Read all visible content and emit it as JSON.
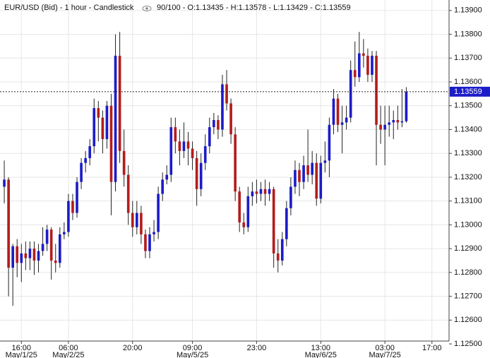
{
  "chart_data": {
    "type": "candlestick",
    "title": "EUR/USD (Bid) - 1 hour - Candlestick",
    "header_info": "90/100 - O:1.13435 - H:1.13578 - L:1.13429 - C:1.13559",
    "up_color": "#1c1cc8",
    "down_color": "#b41c1c",
    "grid": true,
    "last_price": 1.13559,
    "xlim": [
      -1,
      104
    ],
    "ylim": [
      1.12512,
      1.13944
    ],
    "yticks": [
      {
        "value": 1.125,
        "label": "1.12500"
      },
      {
        "value": 1.126,
        "label": "1.12600"
      },
      {
        "value": 1.127,
        "label": "1.12700"
      },
      {
        "value": 1.128,
        "label": "1.12800"
      },
      {
        "value": 1.129,
        "label": "1.12900"
      },
      {
        "value": 1.13,
        "label": "1.13000"
      },
      {
        "value": 1.131,
        "label": "1.13100"
      },
      {
        "value": 1.132,
        "label": "1.13200"
      },
      {
        "value": 1.133,
        "label": "1.13300"
      },
      {
        "value": 1.134,
        "label": "1.13400"
      },
      {
        "value": 1.135,
        "label": "1.13500"
      },
      {
        "value": 1.136,
        "label": "1.13600"
      },
      {
        "value": 1.137,
        "label": "1.13700"
      },
      {
        "value": 1.138,
        "label": "1.13800"
      },
      {
        "value": 1.139,
        "label": "1.13900"
      }
    ],
    "xticks": [
      {
        "value": 4,
        "label": "16:00"
      },
      {
        "value": 15,
        "label": "06:00"
      },
      {
        "value": 30,
        "label": "20:00"
      },
      {
        "value": 44,
        "label": "09:00"
      },
      {
        "value": 59,
        "label": "23:00"
      },
      {
        "value": 74,
        "label": "13:00"
      },
      {
        "value": 89,
        "label": "03:00"
      },
      {
        "value": 100,
        "label": "17:00"
      }
    ],
    "date_ticks": [
      {
        "value": 4,
        "label": "May/1/25"
      },
      {
        "value": 15,
        "label": "May/2/25"
      },
      {
        "value": 44,
        "label": "May/5/25"
      },
      {
        "value": 74,
        "label": "May/6/25"
      },
      {
        "value": 89,
        "label": "May/7/25"
      }
    ],
    "ohlc": [
      [
        1.1316,
        1.1327,
        1.1309,
        1.1319
      ],
      [
        1.1319,
        1.132,
        1.127,
        1.1282
      ],
      [
        1.1282,
        1.1292,
        1.1266,
        1.1291
      ],
      [
        1.1291,
        1.1294,
        1.1278,
        1.1284
      ],
      [
        1.1284,
        1.1292,
        1.1276,
        1.1288
      ],
      [
        1.1288,
        1.1293,
        1.1281,
        1.1286
      ],
      [
        1.1286,
        1.1293,
        1.1281,
        1.129
      ],
      [
        1.129,
        1.1293,
        1.1279,
        1.1285
      ],
      [
        1.1285,
        1.1292,
        1.128,
        1.1289
      ],
      [
        1.1289,
        1.1299,
        1.1287,
        1.1292
      ],
      [
        1.1292,
        1.13,
        1.1289,
        1.1298
      ],
      [
        1.1298,
        1.1299,
        1.1277,
        1.1285
      ],
      [
        1.1285,
        1.1292,
        1.128,
        1.1284
      ],
      [
        1.1284,
        1.1299,
        1.1282,
        1.1296
      ],
      [
        1.1296,
        1.1301,
        1.1294,
        1.1297
      ],
      [
        1.1297,
        1.1313,
        1.1295,
        1.131
      ],
      [
        1.131,
        1.1313,
        1.1302,
        1.1305
      ],
      [
        1.1305,
        1.132,
        1.1303,
        1.1318
      ],
      [
        1.1318,
        1.1328,
        1.1315,
        1.1326
      ],
      [
        1.1326,
        1.1331,
        1.1322,
        1.1328
      ],
      [
        1.1328,
        1.1336,
        1.1325,
        1.1333
      ],
      [
        1.1333,
        1.1353,
        1.133,
        1.1349
      ],
      [
        1.1349,
        1.1352,
        1.1335,
        1.1345
      ],
      [
        1.1345,
        1.1348,
        1.133,
        1.1336
      ],
      [
        1.1336,
        1.1352,
        1.1332,
        1.135
      ],
      [
        1.135,
        1.1355,
        1.1304,
        1.1318
      ],
      [
        1.1318,
        1.138,
        1.1314,
        1.1371
      ],
      [
        1.1371,
        1.1381,
        1.1326,
        1.1331
      ],
      [
        1.1331,
        1.134,
        1.1316,
        1.1321
      ],
      [
        1.1321,
        1.1325,
        1.13,
        1.1305
      ],
      [
        1.1305,
        1.131,
        1.1295,
        1.1299
      ],
      [
        1.1299,
        1.131,
        1.1296,
        1.1305
      ],
      [
        1.1305,
        1.1308,
        1.1292,
        1.1296
      ],
      [
        1.1296,
        1.1298,
        1.1286,
        1.1289
      ],
      [
        1.1289,
        1.1299,
        1.1286,
        1.1296
      ],
      [
        1.1296,
        1.1302,
        1.1293,
        1.1297
      ],
      [
        1.1297,
        1.1316,
        1.1294,
        1.1313
      ],
      [
        1.1313,
        1.1322,
        1.131,
        1.1319
      ],
      [
        1.1319,
        1.1325,
        1.1317,
        1.1321
      ],
      [
        1.1321,
        1.1345,
        1.1318,
        1.1341
      ],
      [
        1.1341,
        1.1345,
        1.133,
        1.1335
      ],
      [
        1.1335,
        1.134,
        1.1325,
        1.1331
      ],
      [
        1.1331,
        1.1343,
        1.1328,
        1.1335
      ],
      [
        1.1335,
        1.1339,
        1.1325,
        1.1332
      ],
      [
        1.1332,
        1.1335,
        1.1323,
        1.1328
      ],
      [
        1.1328,
        1.1331,
        1.1308,
        1.1315
      ],
      [
        1.1315,
        1.133,
        1.1312,
        1.1326
      ],
      [
        1.1326,
        1.1338,
        1.1323,
        1.1333
      ],
      [
        1.1333,
        1.1345,
        1.133,
        1.1341
      ],
      [
        1.1341,
        1.1347,
        1.1338,
        1.1344
      ],
      [
        1.1344,
        1.1346,
        1.1336,
        1.134
      ],
      [
        1.134,
        1.1363,
        1.1337,
        1.1359
      ],
      [
        1.1359,
        1.1365,
        1.1348,
        1.1351
      ],
      [
        1.1351,
        1.1353,
        1.1334,
        1.1338
      ],
      [
        1.1338,
        1.1341,
        1.131,
        1.1314
      ],
      [
        1.1314,
        1.1316,
        1.1297,
        1.1301
      ],
      [
        1.1301,
        1.1305,
        1.1296,
        1.1299
      ],
      [
        1.1299,
        1.1316,
        1.1297,
        1.1312
      ],
      [
        1.1312,
        1.1318,
        1.1308,
        1.1314
      ],
      [
        1.1314,
        1.1319,
        1.1309,
        1.1313
      ],
      [
        1.1313,
        1.1318,
        1.131,
        1.1315
      ],
      [
        1.1315,
        1.1319,
        1.1308,
        1.1313
      ],
      [
        1.1313,
        1.1318,
        1.131,
        1.1315
      ],
      [
        1.1315,
        1.1316,
        1.1282,
        1.1288
      ],
      [
        1.1288,
        1.1294,
        1.128,
        1.1285
      ],
      [
        1.1285,
        1.1297,
        1.1283,
        1.1294
      ],
      [
        1.1294,
        1.131,
        1.1291,
        1.1307
      ],
      [
        1.1307,
        1.132,
        1.1304,
        1.1316
      ],
      [
        1.1316,
        1.1327,
        1.1313,
        1.1323
      ],
      [
        1.1323,
        1.1326,
        1.1312,
        1.1318
      ],
      [
        1.1318,
        1.1329,
        1.1315,
        1.1325
      ],
      [
        1.1325,
        1.134,
        1.1318,
        1.1321
      ],
      [
        1.1321,
        1.1331,
        1.1317,
        1.1326
      ],
      [
        1.1326,
        1.133,
        1.1308,
        1.1311
      ],
      [
        1.1311,
        1.1329,
        1.1309,
        1.1326
      ],
      [
        1.1326,
        1.1335,
        1.1322,
        1.1327
      ],
      [
        1.1327,
        1.1345,
        1.132,
        1.1342
      ],
      [
        1.1342,
        1.1357,
        1.1338,
        1.1353
      ],
      [
        1.1353,
        1.1355,
        1.1339,
        1.1342
      ],
      [
        1.1342,
        1.135,
        1.133,
        1.1343
      ],
      [
        1.1343,
        1.135,
        1.134,
        1.1345
      ],
      [
        1.1345,
        1.1369,
        1.1343,
        1.1365
      ],
      [
        1.1365,
        1.1377,
        1.1358,
        1.1362
      ],
      [
        1.1362,
        1.1381,
        1.136,
        1.1372
      ],
      [
        1.1372,
        1.1378,
        1.1366,
        1.1371
      ],
      [
        1.1371,
        1.1374,
        1.136,
        1.1363
      ],
      [
        1.1363,
        1.1373,
        1.136,
        1.1371
      ],
      [
        1.1371,
        1.1373,
        1.1325,
        1.1342
      ],
      [
        1.1342,
        1.135,
        1.1334,
        1.134
      ],
      [
        1.134,
        1.135,
        1.1325,
        1.1342
      ],
      [
        1.1342,
        1.135,
        1.1337,
        1.1343
      ],
      [
        1.1343,
        1.1348,
        1.1336,
        1.1344
      ],
      [
        1.1344,
        1.135,
        1.134,
        1.1343
      ],
      [
        1.1343,
        1.1357,
        1.1341,
        1.13435
      ],
      [
        1.13435,
        1.13578,
        1.13429,
        1.13559
      ]
    ]
  }
}
